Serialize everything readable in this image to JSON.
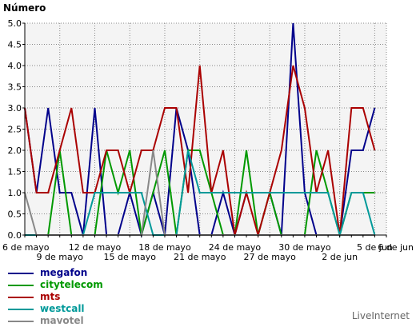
{
  "chart_data": {
    "type": "line",
    "ylabel": "Número",
    "ylim": [
      0,
      5
    ],
    "yticks": [
      "0.0",
      "0.5",
      "1.0",
      "1.5",
      "2.0",
      "2.5",
      "3.0",
      "3.5",
      "4.0",
      "4.5",
      "5.0"
    ],
    "x": [
      "6 de mayo",
      "7 de mayo",
      "8 de mayo",
      "9 de mayo",
      "10 de mayo",
      "11 de mayo",
      "12 de mayo",
      "13 de mayo",
      "14 de mayo",
      "15 de mayo",
      "16 de mayo",
      "17 de mayo",
      "18 de mayo",
      "19 de mayo",
      "20 de mayo",
      "21 de mayo",
      "22 de mayo",
      "23 de mayo",
      "24 de mayo",
      "25 de mayo",
      "26 de mayo",
      "27 de mayo",
      "28 de mayo",
      "29 de mayo",
      "30 de mayo",
      "31 de mayo",
      "1 de jun",
      "2 de jun",
      "3 de jun",
      "4 de jun",
      "5 de jun",
      "6 de jun"
    ],
    "xtick_labels": [
      {
        "index": 0,
        "label": "6 de mayo",
        "row": 0
      },
      {
        "index": 3,
        "label": "9 de mayo",
        "row": 1
      },
      {
        "index": 6,
        "label": "12 de mayo",
        "row": 0
      },
      {
        "index": 9,
        "label": "15 de mayo",
        "row": 1
      },
      {
        "index": 12,
        "label": "18 de mayo",
        "row": 0
      },
      {
        "index": 15,
        "label": "21 de mayo",
        "row": 1
      },
      {
        "index": 18,
        "label": "24 de mayo",
        "row": 0
      },
      {
        "index": 21,
        "label": "27 de mayo",
        "row": 1
      },
      {
        "index": 24,
        "label": "30 de mayo",
        "row": 0
      },
      {
        "index": 27,
        "label": "2 de jun",
        "row": 1
      },
      {
        "index": 30,
        "label": "5 de jun",
        "row": 0
      },
      {
        "index": 31,
        "label": "6 de jun",
        "row": 0
      }
    ],
    "grid": true,
    "legend_position": "bottom-left",
    "series": [
      {
        "name": "megafon",
        "color": "#00008b",
        "values": [
          3,
          1,
          3,
          1,
          1,
          0,
          3,
          0,
          0,
          1,
          0,
          1,
          0,
          3,
          2,
          0,
          0,
          1,
          0,
          1,
          1,
          1,
          0,
          5,
          1,
          0,
          0,
          0,
          2,
          2,
          3,
          null
        ]
      },
      {
        "name": "citytelecom",
        "color": "#009900",
        "values": [
          0,
          0,
          0,
          2,
          0,
          0,
          0,
          2,
          1,
          2,
          0,
          1,
          2,
          0,
          2,
          2,
          1,
          0,
          0,
          2,
          0,
          1,
          0,
          0,
          0,
          2,
          1,
          0,
          1,
          1,
          1,
          null
        ]
      },
      {
        "name": "mts",
        "color": "#aa0000",
        "values": [
          3,
          1,
          1,
          2,
          3,
          1,
          1,
          2,
          2,
          1,
          2,
          2,
          3,
          3,
          1,
          4,
          1,
          2,
          0,
          1,
          0,
          1,
          2,
          4,
          3,
          1,
          2,
          0,
          3,
          3,
          2,
          null
        ]
      },
      {
        "name": "westcall",
        "color": "#009999",
        "values": [
          0,
          0,
          0,
          0,
          0,
          0,
          1,
          1,
          1,
          1,
          1,
          0,
          0,
          0,
          2,
          1,
          1,
          1,
          1,
          1,
          1,
          1,
          1,
          1,
          1,
          1,
          1,
          0,
          1,
          1,
          0,
          null
        ]
      },
      {
        "name": "mavotel",
        "color": "#888888",
        "values": [
          1,
          0,
          0,
          0,
          0,
          0,
          0,
          0,
          0,
          0,
          0,
          2,
          0,
          0,
          0,
          0,
          0,
          0,
          0,
          0,
          0,
          0,
          0,
          0,
          0,
          0,
          0,
          0,
          0,
          0,
          0,
          null
        ]
      }
    ]
  },
  "brand": "LiveInternet"
}
